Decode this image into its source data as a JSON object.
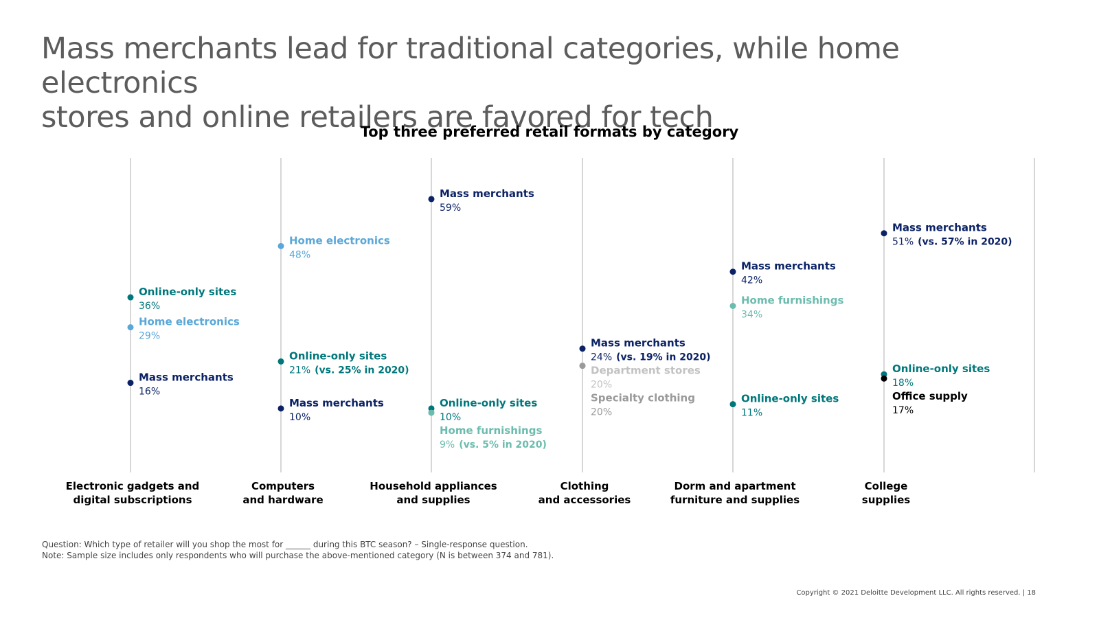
{
  "slide": {
    "title_line1": "Mass merchants lead for traditional categories, while home electronics",
    "title_line2": "stores and online retailers are favored for tech",
    "note1": "Question: Which type of retailer will you shop the most for ______ during this BTC season? – Single-response question.",
    "note2": "Note: Sample size includes only respondents who will purchase the above-mentioned category (N is between 374 and 781).",
    "copyright": "Copyright © 2021 Deloitte Development LLC. All rights reserved.  |   18"
  },
  "colors": {
    "navy": "#0b2265",
    "teal": "#00777b",
    "lightblue": "#5aa7d8",
    "mint": "#6bbcae",
    "gray": "#9a9a9a",
    "lightgray": "#c2c2c2",
    "black": "#000000"
  },
  "chart_data": {
    "type": "scatter",
    "title": "Top three preferred retail formats by category",
    "ylim": [
      5,
      63
    ],
    "xlabel": "",
    "ylabel": "",
    "categories": [
      {
        "label": [
          "Electronic gadgets and",
          "digital subscriptions"
        ],
        "points": [
          {
            "name": "Online-only sites",
            "value_text": "36%",
            "value": 36,
            "color": "teal"
          },
          {
            "name": "Home electronics",
            "value_text": "29%",
            "value": 29,
            "color": "lightblue"
          },
          {
            "name": "Mass merchants",
            "value_text": "16%",
            "value": 16,
            "color": "navy"
          }
        ]
      },
      {
        "label": [
          "Computers",
          "and hardware"
        ],
        "points": [
          {
            "name": "Home electronics",
            "value_text": "48%",
            "value": 48,
            "color": "lightblue"
          },
          {
            "name": "Online-only sites",
            "value_text": "21%",
            "value": 21,
            "color": "teal",
            "extra_bold": "(vs. 25% in 2020)"
          },
          {
            "name": "Mass merchants",
            "value_text": "10%",
            "value": 10,
            "color": "navy"
          }
        ]
      },
      {
        "label": [
          "Household appliances",
          "and supplies"
        ],
        "points": [
          {
            "name": "Mass merchants",
            "value_text": "59%",
            "value": 59,
            "color": "navy"
          },
          {
            "name": "Online-only sites",
            "value_text": "10%",
            "value": 10,
            "color": "teal"
          },
          {
            "name": "Home furnishings",
            "value_text": "9%",
            "value": 9,
            "color": "mint",
            "extra_bold": "(vs. 5% in 2020)"
          }
        ]
      },
      {
        "label": [
          "Clothing",
          "and accessories"
        ],
        "points": [
          {
            "name": "Mass merchants",
            "value_text": "24%",
            "value": 24,
            "color": "navy",
            "extra_bold": "(vs. 19% in 2020)"
          },
          {
            "name": "Department stores",
            "value_text": "20%",
            "value": 20,
            "color": "lightgray"
          },
          {
            "name": "Specialty clothing",
            "value_text": "20%",
            "value": 20,
            "color": "gray"
          }
        ]
      },
      {
        "label": [
          "Dorm and apartment",
          "furniture and supplies"
        ],
        "points": [
          {
            "name": "Mass merchants",
            "value_text": "42%",
            "value": 42,
            "color": "navy"
          },
          {
            "name": "Home furnishings",
            "value_text": "34%",
            "value": 34,
            "color": "mint"
          },
          {
            "name": "Online-only sites",
            "value_text": "11%",
            "value": 11,
            "color": "teal"
          }
        ]
      },
      {
        "label": [
          "College",
          "supplies"
        ],
        "points": [
          {
            "name": "Mass merchants",
            "value_text": "51%",
            "value": 51,
            "color": "navy",
            "extra_bold": "(vs. 57% in 2020)"
          },
          {
            "name": "Online-only sites",
            "value_text": "18%",
            "value": 18,
            "color": "teal"
          },
          {
            "name": "Office supply",
            "value_text": "17%",
            "value": 17,
            "color": "black"
          }
        ]
      }
    ]
  }
}
